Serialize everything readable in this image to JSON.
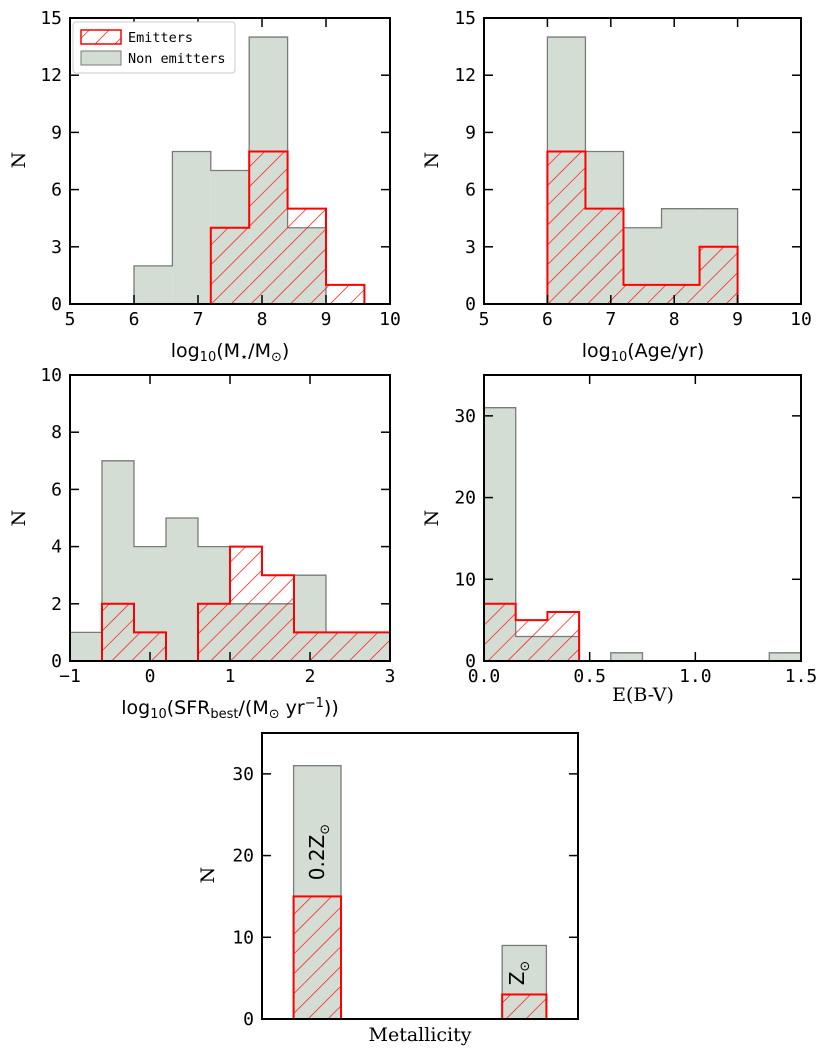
{
  "colors": {
    "emitter_edge": "#ff0000",
    "nonemitter_fill": "#d4ddd4",
    "nonemitter_edge": "#7a7a7a",
    "axis": "#000000"
  },
  "legend": {
    "emitters": "Emitters",
    "non_emitters": "Non emitters"
  },
  "chart_data": [
    {
      "id": "mass",
      "type": "histogram",
      "xlabel": {
        "pre": "log",
        "sub": "10",
        "post": "(M",
        "sub2": "⋆",
        "mid": "/M",
        "sub3": "⊙",
        "end": ")"
      },
      "ylabel": "N",
      "xlim": [
        5,
        10
      ],
      "ylim": [
        0,
        15
      ],
      "xticks": [
        5,
        6,
        7,
        8,
        9,
        10
      ],
      "yticks": [
        0,
        3,
        6,
        9,
        12,
        15
      ],
      "xtick_labels": [
        "5",
        "6",
        "7",
        "8",
        "9",
        "10"
      ],
      "ytick_labels": [
        "0",
        "3",
        "6",
        "9",
        "12",
        "15"
      ],
      "bin_edges": [
        6.0,
        6.6,
        7.2,
        7.8,
        8.4,
        9.0,
        9.6
      ],
      "non_emitters": [
        2,
        8,
        7,
        14,
        4,
        0
      ],
      "emitters": [
        0,
        0,
        4,
        8,
        5,
        1
      ],
      "legend": true
    },
    {
      "id": "age",
      "type": "histogram",
      "xlabel": {
        "pre": "log",
        "sub": "10",
        "post": "(Age/yr)"
      },
      "ylabel": "N",
      "xlim": [
        5,
        10
      ],
      "ylim": [
        0,
        15
      ],
      "xticks": [
        5,
        6,
        7,
        8,
        9,
        10
      ],
      "yticks": [
        0,
        3,
        6,
        9,
        12,
        15
      ],
      "xtick_labels": [
        "5",
        "6",
        "7",
        "8",
        "9",
        "10"
      ],
      "ytick_labels": [
        "0",
        "3",
        "6",
        "9",
        "12",
        "15"
      ],
      "bin_edges": [
        6.0,
        6.6,
        7.2,
        7.8,
        8.4,
        9.0
      ],
      "non_emitters": [
        14,
        8,
        4,
        5,
        5
      ],
      "emitters": [
        8,
        5,
        1,
        1,
        3
      ]
    },
    {
      "id": "sfr",
      "type": "histogram",
      "xlabel": {
        "pre": "log",
        "sub": "10",
        "post": "(SFR",
        "sub2": "best",
        "mid": "/(M",
        "sub3": "⊙",
        "end": " yr",
        "sup": "−1",
        "close": "))"
      },
      "ylabel": "N",
      "xlim": [
        -1,
        3
      ],
      "ylim": [
        0,
        10
      ],
      "xticks": [
        -1,
        0,
        1,
        2,
        3
      ],
      "yticks": [
        0,
        2,
        4,
        6,
        8,
        10
      ],
      "xtick_labels": [
        "−1",
        "0",
        "1",
        "2",
        "3"
      ],
      "ytick_labels": [
        "0",
        "2",
        "4",
        "6",
        "8",
        "10"
      ],
      "bin_edges": [
        -1.0,
        -0.6,
        -0.2,
        0.2,
        0.6,
        1.0,
        1.4,
        1.8,
        2.2,
        2.6,
        3.0
      ],
      "non_emitters": [
        1,
        7,
        4,
        5,
        4,
        2,
        2,
        3,
        1,
        1
      ],
      "emitters": [
        0,
        2,
        1,
        0,
        2,
        4,
        3,
        1,
        1,
        1
      ]
    },
    {
      "id": "ebv",
      "type": "histogram",
      "xlabel": {
        "pre": "E(B-V)"
      },
      "ylabel": "N",
      "xlim": [
        0.0,
        1.5
      ],
      "ylim": [
        0,
        35
      ],
      "xticks": [
        0.0,
        0.5,
        1.0,
        1.5
      ],
      "yticks": [
        0,
        10,
        20,
        30
      ],
      "xtick_labels": [
        "0.0",
        "0.5",
        "1.0",
        "1.5"
      ],
      "ytick_labels": [
        "0",
        "10",
        "20",
        "30"
      ],
      "bin_edges": [
        0.0,
        0.15,
        0.3,
        0.45,
        0.6,
        0.75,
        0.9,
        1.05,
        1.2,
        1.35,
        1.5
      ],
      "non_emitters": [
        31,
        3,
        3,
        0,
        1,
        0,
        0,
        0,
        0,
        1
      ],
      "emitters": [
        7,
        5,
        6,
        0,
        0,
        0,
        0,
        0,
        0,
        0
      ]
    },
    {
      "id": "metallicity",
      "type": "bar",
      "xlabel": {
        "pre": "Metallicity"
      },
      "ylabel": "N",
      "xlim": [
        0,
        1
      ],
      "ylim": [
        0,
        35
      ],
      "yticks": [
        0,
        10,
        20,
        30
      ],
      "ytick_labels": [
        "0",
        "10",
        "20",
        "30"
      ],
      "bars": [
        {
          "x0": 0.1,
          "x1": 0.25,
          "non_emitters": 31,
          "emitters": 15,
          "label_pre": "0.2Z",
          "label_sub": "⊙"
        },
        {
          "x0": 0.76,
          "x1": 0.9,
          "non_emitters": 9,
          "emitters": 3,
          "label_pre": "Z",
          "label_sub": "⊙"
        }
      ]
    }
  ]
}
